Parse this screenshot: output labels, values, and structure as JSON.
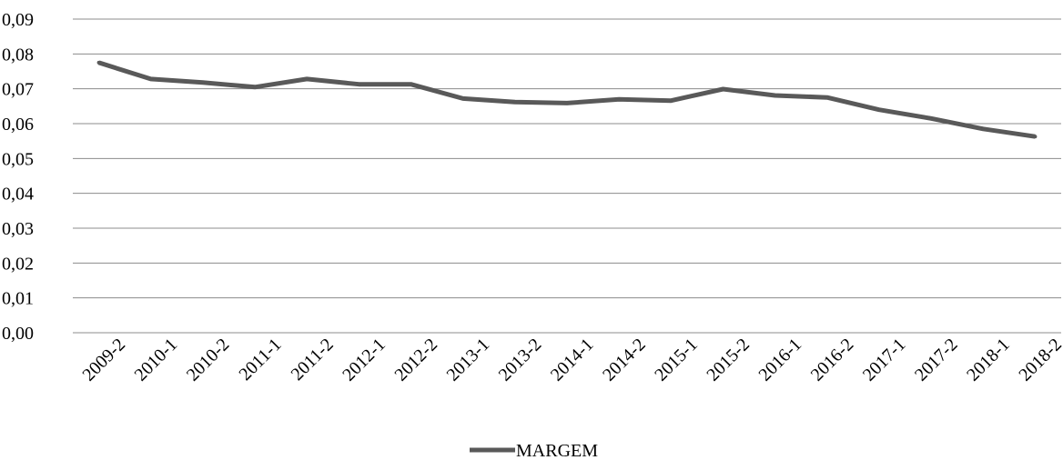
{
  "chart_data": {
    "type": "line",
    "title": "",
    "xlabel": "",
    "ylabel": "",
    "categories": [
      "2009-2",
      "2010-1",
      "2010-2",
      "2011-1",
      "2011-2",
      "2012-1",
      "2012-2",
      "2013-1",
      "2013-2",
      "2014-1",
      "2014-2",
      "2015-1",
      "2015-2",
      "2016-1",
      "2016-2",
      "2017-1",
      "2017-2",
      "2018-1",
      "2018-2"
    ],
    "series": [
      {
        "name": "MARGEM",
        "values": [
          0.0775,
          0.0728,
          0.0718,
          0.0705,
          0.0728,
          0.0713,
          0.0713,
          0.0672,
          0.0662,
          0.0659,
          0.067,
          0.0666,
          0.0699,
          0.0681,
          0.0675,
          0.064,
          0.0615,
          0.0585,
          0.0563
        ],
        "color": "#595959"
      }
    ],
    "ylim": [
      0,
      0.09
    ],
    "yticks": [
      "0,00",
      "0,01",
      "0,02",
      "0,03",
      "0,04",
      "0,05",
      "0,06",
      "0,07",
      "0,08",
      "0,09"
    ],
    "grid": true,
    "legend_position": "bottom"
  }
}
